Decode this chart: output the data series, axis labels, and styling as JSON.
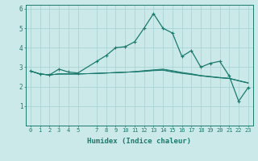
{
  "xlabel": "Humidex (Indice chaleur)",
  "xlim": [
    -0.5,
    23.5
  ],
  "ylim": [
    0,
    6.2
  ],
  "xticks": [
    0,
    1,
    2,
    3,
    4,
    5,
    7,
    8,
    9,
    10,
    11,
    12,
    13,
    14,
    15,
    16,
    17,
    18,
    19,
    20,
    21,
    22,
    23
  ],
  "yticks": [
    1,
    2,
    3,
    4,
    5,
    6
  ],
  "bg_color": "#cce9e9",
  "grid_color": "#aad4d4",
  "line_color": "#1a7a6e",
  "line1_x": [
    0,
    1,
    2,
    3,
    4,
    5,
    7,
    8,
    9,
    10,
    11,
    12,
    13,
    14,
    15,
    16,
    17,
    18,
    19,
    20,
    21,
    22,
    23
  ],
  "line1_y": [
    2.8,
    2.65,
    2.6,
    2.9,
    2.75,
    2.7,
    3.3,
    3.6,
    4.0,
    4.05,
    4.3,
    5.0,
    5.75,
    5.0,
    4.75,
    3.55,
    3.85,
    3.0,
    3.2,
    3.3,
    2.55,
    1.25,
    1.95
  ],
  "line2_x": [
    0,
    1,
    2,
    3,
    4,
    5,
    7,
    8,
    9,
    10,
    11,
    12,
    13,
    14,
    15,
    16,
    17,
    18,
    19,
    20,
    21,
    22,
    23
  ],
  "line2_y": [
    2.8,
    2.65,
    2.6,
    2.65,
    2.65,
    2.65,
    2.68,
    2.7,
    2.72,
    2.74,
    2.76,
    2.78,
    2.82,
    2.84,
    2.75,
    2.68,
    2.62,
    2.55,
    2.5,
    2.45,
    2.42,
    2.3,
    2.2
  ],
  "line3_x": [
    0,
    1,
    2,
    3,
    4,
    5,
    7,
    8,
    9,
    10,
    11,
    12,
    13,
    14,
    15,
    16,
    17,
    18,
    19,
    20,
    21,
    22,
    23
  ],
  "line3_y": [
    2.8,
    2.65,
    2.6,
    2.65,
    2.65,
    2.65,
    2.68,
    2.7,
    2.72,
    2.74,
    2.76,
    2.8,
    2.84,
    2.87,
    2.78,
    2.7,
    2.64,
    2.56,
    2.51,
    2.46,
    2.42,
    2.3,
    2.18
  ],
  "line4_x": [
    0,
    1,
    2,
    3,
    4,
    5,
    7,
    8,
    9,
    10,
    11,
    12,
    13,
    14,
    15,
    16,
    17,
    18,
    19,
    20,
    21,
    22,
    23
  ],
  "line4_y": [
    2.8,
    2.65,
    2.6,
    2.65,
    2.65,
    2.65,
    2.68,
    2.7,
    2.72,
    2.74,
    2.77,
    2.82,
    2.86,
    2.9,
    2.82,
    2.73,
    2.66,
    2.57,
    2.52,
    2.47,
    2.43,
    2.31,
    2.19
  ]
}
